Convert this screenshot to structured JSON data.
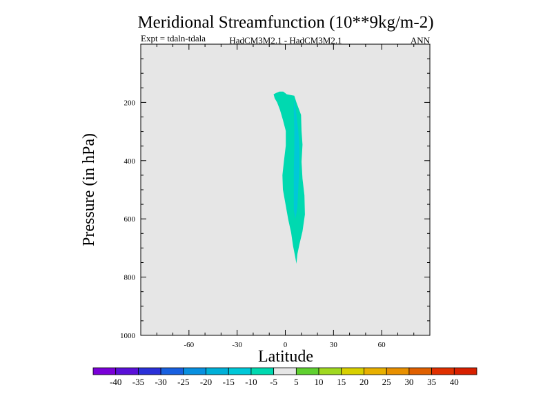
{
  "chart_data": {
    "type": "contour",
    "title": "Meridional Streamfunction (10**9kg/m-2)",
    "subtitle_left": "Expt = tdaln-tdala",
    "subtitle_center": "HadCM3M2.1 - HadCM3M2.1",
    "subtitle_right": "ANN",
    "xlabel": "Latitude",
    "ylabel": "Pressure (in hPa)",
    "xlim": [
      -90,
      90
    ],
    "ylim": [
      1000,
      0
    ],
    "x_ticks": [
      {
        "value": -60,
        "label": "-60"
      },
      {
        "value": -30,
        "label": "-30"
      },
      {
        "value": 0,
        "label": "0"
      },
      {
        "value": 30,
        "label": "30"
      },
      {
        "value": 60,
        "label": "60"
      }
    ],
    "y_ticks": [
      {
        "value": 200,
        "label": "200"
      },
      {
        "value": 400,
        "label": "400"
      },
      {
        "value": 600,
        "label": "600"
      },
      {
        "value": 800,
        "label": "800"
      },
      {
        "value": 1000,
        "label": "1000"
      }
    ],
    "background_color": "#e6e6e6",
    "contours": [
      {
        "name": "-10 to -5",
        "color": "#00d9b0",
        "points": [
          [
            -7.3,
            172
          ],
          [
            -5.5,
            167
          ],
          [
            -3.7,
            163
          ],
          [
            -1.3,
            163
          ],
          [
            0.9,
            172
          ],
          [
            5.6,
            177
          ],
          [
            6.9,
            200
          ],
          [
            9.8,
            243
          ],
          [
            10.1,
            298
          ],
          [
            10.7,
            345
          ],
          [
            10.1,
            404
          ],
          [
            10.7,
            462
          ],
          [
            11.9,
            519
          ],
          [
            12.2,
            585
          ],
          [
            10.7,
            643
          ],
          [
            8.7,
            689
          ],
          [
            7.5,
            721
          ],
          [
            6.9,
            754
          ],
          [
            6.1,
            729
          ],
          [
            4.8,
            693
          ],
          [
            3.6,
            647
          ],
          [
            1.8,
            602
          ],
          [
            0.3,
            555
          ],
          [
            -1.5,
            499
          ],
          [
            -1.8,
            450
          ],
          [
            -0.9,
            404
          ],
          [
            0.3,
            348
          ],
          [
            0.3,
            298
          ],
          [
            -1.5,
            260
          ],
          [
            -3.3,
            226
          ],
          [
            -5.1,
            200
          ],
          [
            -6.6,
            186
          ],
          [
            -7.3,
            172
          ]
        ]
      },
      {
        "name": "-15 to -10",
        "color": "#00c8d8",
        "points": [
          [
            5.6,
            190
          ],
          [
            6.9,
            240
          ],
          [
            8.1,
            300
          ],
          [
            8.7,
            360
          ],
          [
            8.7,
            420
          ],
          [
            8.1,
            490
          ],
          [
            7.5,
            560
          ],
          [
            6.3,
            600
          ],
          [
            5.3,
            570
          ],
          [
            5.3,
            500
          ],
          [
            5.3,
            430
          ],
          [
            5.6,
            360
          ],
          [
            5.6,
            290
          ],
          [
            5.3,
            230
          ],
          [
            5.6,
            190
          ]
        ]
      }
    ],
    "colorbar": {
      "ticks": [
        "-40",
        "-35",
        "-30",
        "-25",
        "-20",
        "-15",
        "-10",
        "-5",
        "5",
        "10",
        "15",
        "20",
        "25",
        "30",
        "35",
        "40"
      ],
      "colors": [
        "#7a00d8",
        "#5a10d8",
        "#2a30d8",
        "#1860e0",
        "#0890e0",
        "#00b0d8",
        "#00c8d8",
        "#00d9b0",
        "#e6e6e6",
        "#60d030",
        "#a0d820",
        "#d8d000",
        "#e8b000",
        "#e89000",
        "#e06000",
        "#e03000",
        "#d82000"
      ]
    }
  }
}
